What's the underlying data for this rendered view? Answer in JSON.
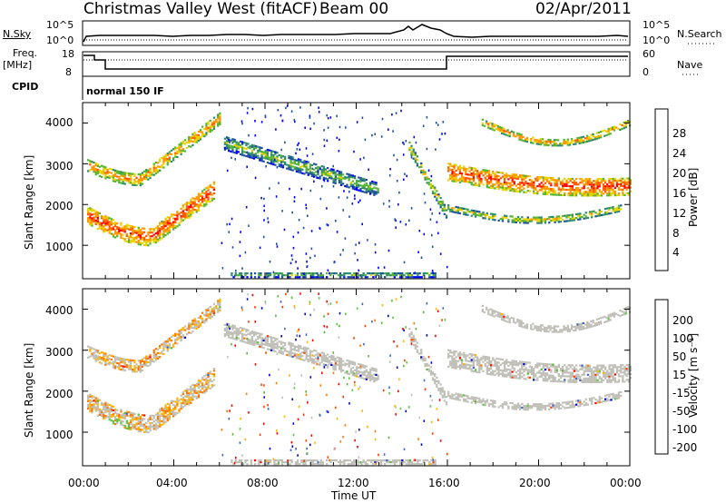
{
  "header": {
    "station": "Christmas Valley West (fitACF)",
    "beam": "Beam 00",
    "date": "02/Apr/2011"
  },
  "top_panels": {
    "nsky_label": "N.Sky",
    "nsky_ticks": [
      "10^5",
      "10^0"
    ],
    "nsearch_label": "N.Search",
    "nsearch_ticks": [
      "10^5",
      "10^0"
    ],
    "freq_label": "Freq.",
    "freq_unit": "[MHz]",
    "freq_ticks": [
      "18",
      "8"
    ],
    "nave_label": "Nave",
    "nave_ticks": [
      "60",
      "0"
    ],
    "cpid_label": "CPID",
    "cpid_text": "normal 150 IF"
  },
  "chart_data": [
    {
      "type": "heatmap",
      "name": "power-panel",
      "ylabel": "Slant Range [km]",
      "yticks": [
        "4000",
        "3000",
        "2000",
        "1000"
      ],
      "ylim": [
        180,
        4500
      ],
      "xlim": [
        0,
        24
      ],
      "colorbar": {
        "label": "Power [dB]",
        "ticks": [
          "28",
          "24",
          "20",
          "16",
          "12",
          "8",
          "4"
        ],
        "colors": [
          "#ff0000",
          "#ff5a00",
          "#ff9600",
          "#e8d200",
          "#55b432",
          "#2e8b6e",
          "#1f4fa0",
          "#0000ff"
        ]
      }
    },
    {
      "type": "heatmap",
      "name": "velocity-panel",
      "ylabel": "Slant Range [km]",
      "yticks": [
        "4000",
        "3000",
        "2000",
        "1000"
      ],
      "ylim": [
        180,
        4500
      ],
      "xlim": [
        0,
        24
      ],
      "xticks": [
        "00:00",
        "04:00",
        "08:00",
        "12:00",
        "16:00",
        "20:00",
        "00:00"
      ],
      "xlabel": "Time UT",
      "colorbar": {
        "label": "Velocity [m s⁻¹]",
        "ticks": [
          "200",
          "100",
          "50",
          "15",
          "-15",
          "-50",
          "-100",
          "-200"
        ],
        "colors": [
          "#0000c8",
          "#3c64c8",
          "#5ab432",
          "#55c83c",
          "#c0c0b8",
          "#ffb400",
          "#ff7800",
          "#ff3c00",
          "#ff0000"
        ]
      }
    }
  ]
}
